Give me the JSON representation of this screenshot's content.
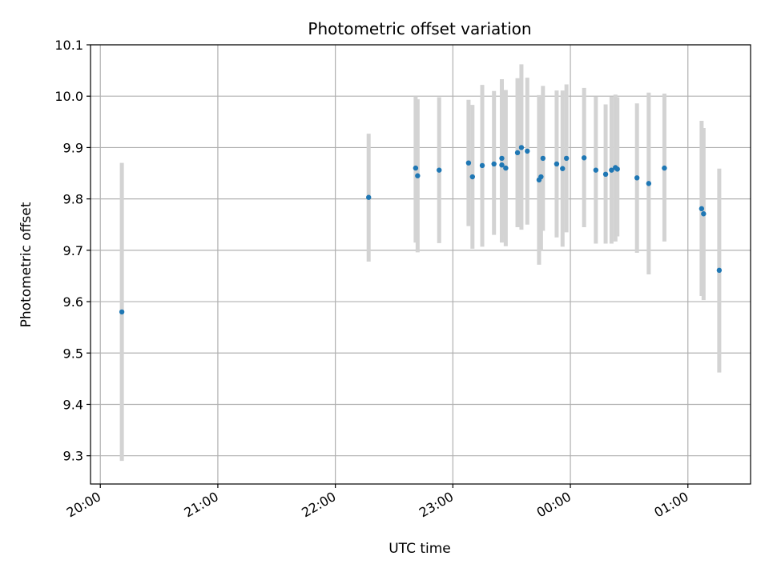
{
  "chart_data": {
    "type": "scatter",
    "title": "Photometric offset variation",
    "xlabel": "UTC time",
    "ylabel": "Photometric offset",
    "x_unit": "UTC time (HH:MM)",
    "xlim": [
      "19:55",
      "01:32"
    ],
    "ylim": [
      9.245,
      10.1
    ],
    "grid": true,
    "x_ticks": [
      "20:00",
      "21:00",
      "22:00",
      "23:00",
      "00:00",
      "01:00"
    ],
    "y_ticks": [
      "9.3",
      "9.4",
      "9.5",
      "9.6",
      "9.7",
      "9.8",
      "9.9",
      "10.0",
      "10.1"
    ],
    "colors": {
      "point": "#1f77b4",
      "errorbar": "#d3d3d3",
      "grid": "#b0b0b0"
    },
    "points": [
      {
        "x": "20:11",
        "y": 9.58,
        "ymin": 9.29,
        "ymax": 9.87
      },
      {
        "x": "22:17",
        "y": 9.803,
        "ymin": 9.678,
        "ymax": 9.927
      },
      {
        "x": "22:41",
        "y": 9.86,
        "ymin": 9.715,
        "ymax": 10.0
      },
      {
        "x": "22:42",
        "y": 9.845,
        "ymin": 9.696,
        "ymax": 9.994
      },
      {
        "x": "22:53",
        "y": 9.856,
        "ymin": 9.714,
        "ymax": 9.998
      },
      {
        "x": "23:08",
        "y": 9.87,
        "ymin": 9.747,
        "ymax": 9.993
      },
      {
        "x": "23:10",
        "y": 9.843,
        "ymin": 9.703,
        "ymax": 9.983
      },
      {
        "x": "23:15",
        "y": 9.865,
        "ymin": 9.707,
        "ymax": 10.022
      },
      {
        "x": "23:21",
        "y": 9.868,
        "ymin": 9.73,
        "ymax": 10.01
      },
      {
        "x": "23:25",
        "y": 9.866,
        "ymin": 9.715,
        "ymax": 10.033
      },
      {
        "x": "23:25",
        "y": 9.879,
        "ymin": 9.73,
        "ymax": 10.028
      },
      {
        "x": "23:27",
        "y": 9.86,
        "ymin": 9.708,
        "ymax": 10.012
      },
      {
        "x": "23:33",
        "y": 9.89,
        "ymin": 9.745,
        "ymax": 10.035
      },
      {
        "x": "23:35",
        "y": 9.9,
        "ymin": 9.74,
        "ymax": 10.062
      },
      {
        "x": "23:38",
        "y": 9.893,
        "ymin": 9.75,
        "ymax": 10.036
      },
      {
        "x": "23:44",
        "y": 9.837,
        "ymin": 9.672,
        "ymax": 10.002
      },
      {
        "x": "23:45",
        "y": 9.843,
        "ymin": 9.7,
        "ymax": 9.985
      },
      {
        "x": "23:46",
        "y": 9.879,
        "ymin": 9.738,
        "ymax": 10.02
      },
      {
        "x": "23:53",
        "y": 9.868,
        "ymin": 9.725,
        "ymax": 10.011
      },
      {
        "x": "23:56",
        "y": 9.859,
        "ymin": 9.707,
        "ymax": 10.011
      },
      {
        "x": "23:58",
        "y": 9.879,
        "ymin": 9.735,
        "ymax": 10.023
      },
      {
        "x": "00:07",
        "y": 9.88,
        "ymin": 9.745,
        "ymax": 10.016
      },
      {
        "x": "00:13",
        "y": 9.856,
        "ymin": 9.713,
        "ymax": 9.999
      },
      {
        "x": "00:18",
        "y": 9.848,
        "ymin": 9.713,
        "ymax": 9.984
      },
      {
        "x": "00:21",
        "y": 9.856,
        "ymin": 9.713,
        "ymax": 9.999
      },
      {
        "x": "00:23",
        "y": 9.861,
        "ymin": 9.717,
        "ymax": 10.003
      },
      {
        "x": "00:24",
        "y": 9.858,
        "ymin": 9.727,
        "ymax": 9.998
      },
      {
        "x": "00:34",
        "y": 9.841,
        "ymin": 9.695,
        "ymax": 9.986
      },
      {
        "x": "00:40",
        "y": 9.83,
        "ymin": 9.653,
        "ymax": 10.007
      },
      {
        "x": "00:48",
        "y": 9.86,
        "ymin": 9.717,
        "ymax": 10.005
      },
      {
        "x": "01:07",
        "y": 9.781,
        "ymin": 9.611,
        "ymax": 9.952
      },
      {
        "x": "01:08",
        "y": 9.771,
        "ymin": 9.603,
        "ymax": 9.938
      },
      {
        "x": "01:16",
        "y": 9.661,
        "ymin": 9.462,
        "ymax": 9.859
      }
    ]
  }
}
